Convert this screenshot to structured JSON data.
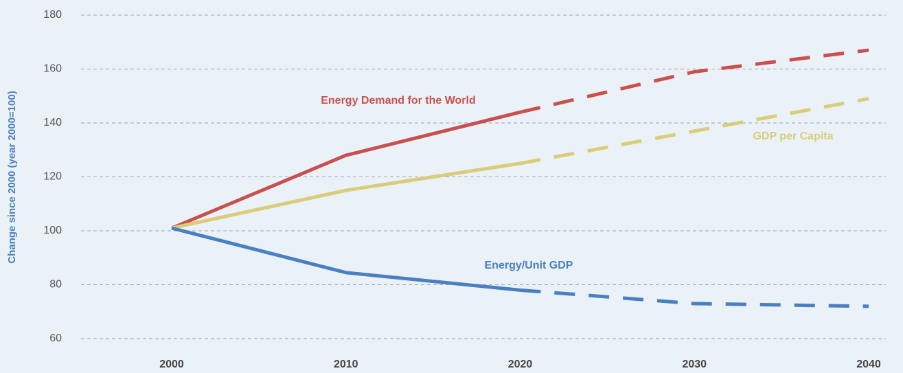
{
  "chart_data": {
    "type": "line",
    "y_label": "Change since 2000 (year 2000=100)",
    "x": [
      2000,
      2010,
      2020,
      2030,
      2040
    ],
    "xlim": [
      1995,
      2041
    ],
    "xticks": [
      2000,
      2010,
      2020,
      2030,
      2040
    ],
    "ylim": [
      60,
      180
    ],
    "yticks": [
      60,
      80,
      100,
      120,
      140,
      160,
      180
    ],
    "grid": true,
    "forecast_from": 2020,
    "series": [
      {
        "name": "Energy Demand for the World",
        "color": "#c9504f",
        "values": [
          101,
          128,
          144,
          159,
          167
        ]
      },
      {
        "name": "GDP per Capita",
        "color": "#d9cc7a",
        "values": [
          101,
          115,
          125,
          137,
          149
        ]
      },
      {
        "name": "Energy/Unit GDP",
        "color": "#4a7fc1",
        "values": [
          101,
          84.5,
          78,
          73,
          72
        ]
      }
    ]
  }
}
